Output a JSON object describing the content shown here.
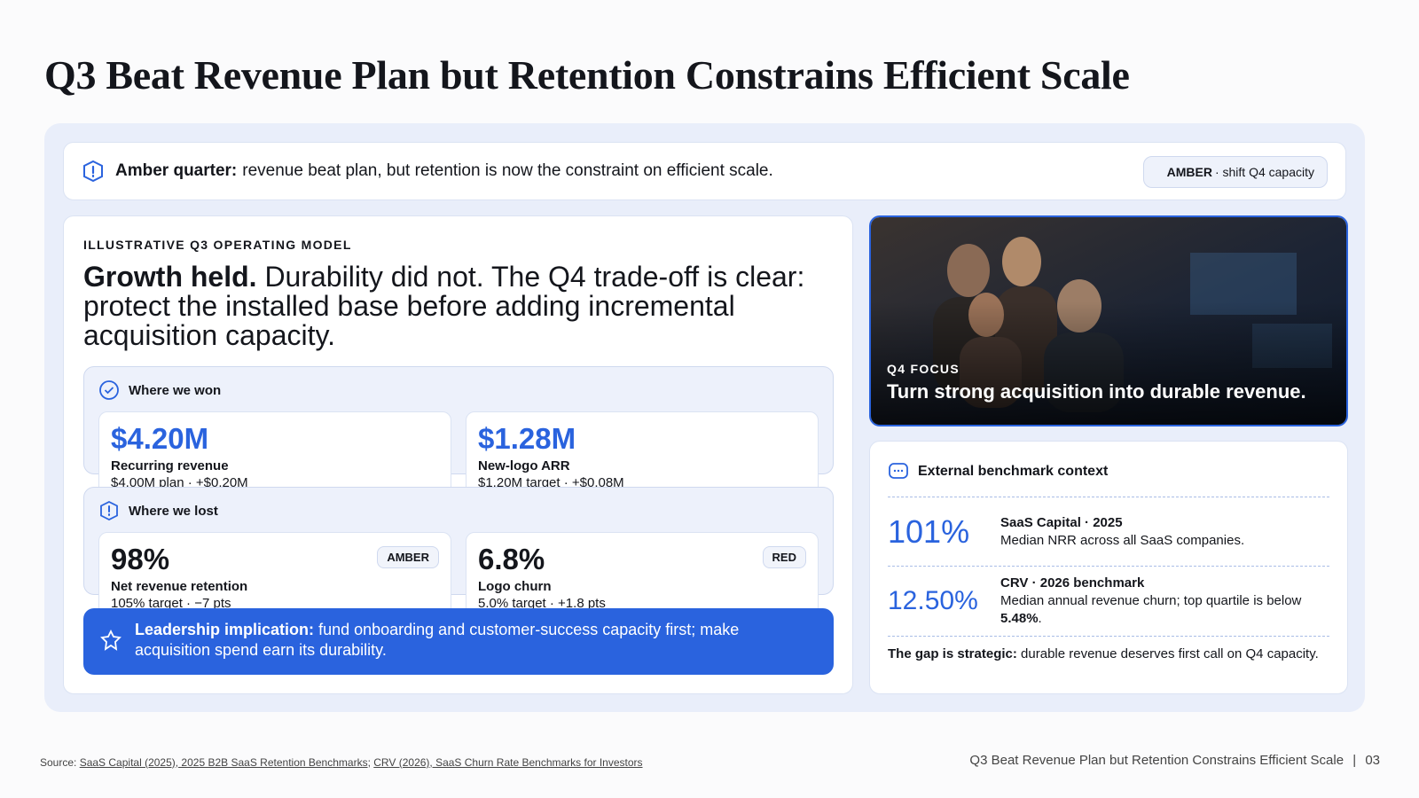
{
  "header": {
    "title": "Q3 Beat Revenue Plan but Retention Constrains Efficient Scale"
  },
  "alert": {
    "label": "Amber quarter:",
    "text": "revenue beat plan, but retention is now the constraint on efficient scale.",
    "badge": "AMBER",
    "badge_text": "· shift Q4 capacity"
  },
  "main": {
    "eyebrow": "ILLUSTRATIVE Q3 OPERATING MODEL",
    "headline_bold": "Growth held.",
    "headline_rest": "Durability did not. The Q4 trade-off is clear: protect the installed base before adding incremental acquisition capacity.",
    "won": {
      "title": "Where we won",
      "metrics": [
        {
          "value": "$4.20M",
          "label": "Recurring revenue",
          "note": "$4.00M plan · +$0.20M"
        },
        {
          "value": "$1.28M",
          "label": "New-logo ARR",
          "note": "$1.20M target · +$0.08M"
        }
      ]
    },
    "lost": {
      "title": "Where we lost",
      "metrics": [
        {
          "value": "98%",
          "label": "Net revenue retention",
          "note": "105% target · −7 pts",
          "status": "AMBER"
        },
        {
          "value": "6.8%",
          "label": "Logo churn",
          "note": "5.0% target · +1.8 pts",
          "status": "RED"
        }
      ]
    },
    "implication": {
      "label": "Leadership implication:",
      "text": "fund onboarding and customer-success capacity first; make acquisition spend earn its durability."
    }
  },
  "photo": {
    "eyebrow": "Q4 FOCUS",
    "caption": "Turn strong acquisition into durable revenue."
  },
  "benchmark": {
    "title": "External benchmark context",
    "items": [
      {
        "value": "101%",
        "source": "SaaS Capital · 2025",
        "text": "Median NRR across all SaaS companies."
      },
      {
        "value": "12.50%",
        "source": "CRV · 2026 benchmark",
        "text": "Median annual revenue churn; top quartile is below",
        "emphasis": "5.48%",
        "tail": "."
      }
    ],
    "gap_label": "The gap is strategic:",
    "gap_text": "durable revenue deserves first call on Q4 capacity."
  },
  "footer": {
    "source_label": "Source:",
    "links": [
      "SaaS Capital (2025), 2025 B2B SaaS Retention Benchmarks",
      "CRV (2026), SaaS Churn Rate Benchmarks for Investors"
    ],
    "link_separator": ";",
    "page_title": "Q3 Beat Revenue Plan but Retention Constrains Efficient Scale",
    "page_separator": "|",
    "page_number": "03"
  }
}
